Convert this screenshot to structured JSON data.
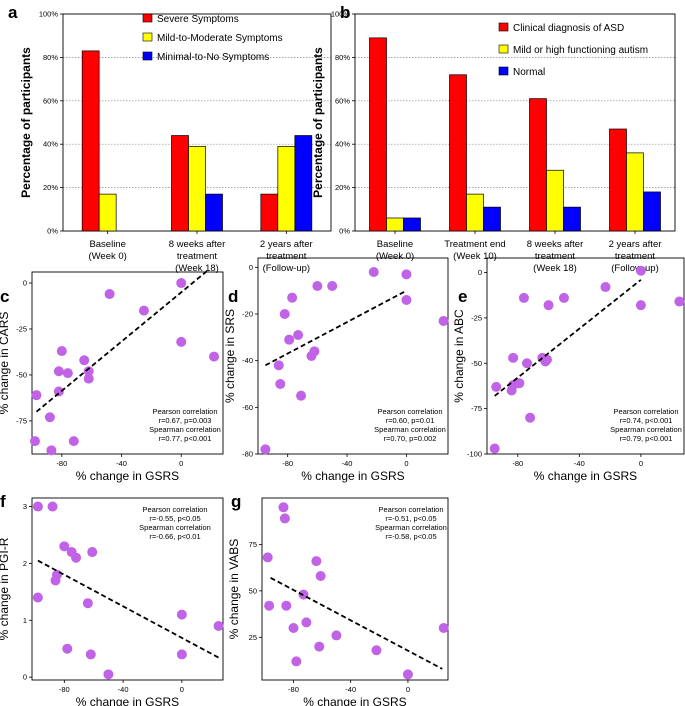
{
  "chart_data": [
    {
      "type": "bar",
      "panel": "a",
      "categories": [
        [
          "Baseline",
          "(Week 0)"
        ],
        [
          "8 weeks after",
          "treatment",
          "(Week 18)"
        ],
        [
          "2 years after",
          "treatment",
          "(Follow-up)"
        ]
      ],
      "ylabel": "Percentage of participants",
      "ylim": [
        0,
        100
      ],
      "yticks": [
        "0%",
        "20%",
        "40%",
        "60%",
        "80%",
        "100%"
      ],
      "grid": "horizontal-dotted",
      "legend_position": "top-right",
      "series": [
        {
          "name": "Severe Symptoms",
          "color": "#ff0000",
          "values": [
            83,
            44,
            17
          ]
        },
        {
          "name": "Mild-to-Moderate Symptoms",
          "color": "#ffff00",
          "values": [
            17,
            39,
            39
          ]
        },
        {
          "name": "Minimal-to-No Symptoms",
          "color": "#0000ff",
          "values": [
            0,
            17,
            44
          ]
        }
      ]
    },
    {
      "type": "bar",
      "panel": "b",
      "categories": [
        [
          "Baseline",
          "(Week 0)"
        ],
        [
          "Treatment end",
          "(Week 10)"
        ],
        [
          "8 weeks after",
          "treatment",
          "(Week 18)"
        ],
        [
          "2 years after",
          "treatment",
          "(Follow-up)"
        ]
      ],
      "ylabel": "Percentage of participants",
      "ylim": [
        0,
        100
      ],
      "yticks": [
        "0%",
        "20%",
        "40%",
        "60%",
        "80%",
        "100%"
      ],
      "grid": "horizontal-dotted",
      "legend_position": "top-right",
      "series": [
        {
          "name": "Clinical diagnosis of ASD",
          "color": "#ff0000",
          "values": [
            89,
            72,
            61,
            47
          ]
        },
        {
          "name": "Mild or high functioning autism",
          "color": "#ffff00",
          "values": [
            6,
            17,
            28,
            36
          ]
        },
        {
          "name": "Normal",
          "color": "#0000ff",
          "values": [
            6,
            11,
            11,
            18
          ]
        }
      ]
    },
    {
      "type": "scatter",
      "panel": "c",
      "xlabel": "% change in GSRS",
      "ylabel": "% change in CARS",
      "xlim": [
        -100,
        28
      ],
      "ylim": [
        -93,
        6
      ],
      "xticks": [
        -80,
        -40,
        0
      ],
      "yticks": [
        0,
        -25,
        -50,
        -75
      ],
      "stats": [
        "Pearson correlation",
        "r=0.67, p=0.003",
        "Spearman correlation",
        "r=0.77, p<0.001"
      ],
      "trendline": [
        [
          -97,
          -70
        ],
        [
          18,
          7
        ]
      ],
      "x": [
        -97,
        -98,
        -88,
        -87,
        -82,
        -82,
        -80,
        -76,
        -72,
        -65,
        -62,
        -62,
        -48,
        -25,
        0,
        0,
        22
      ],
      "y": [
        -61,
        -86,
        -73,
        -91,
        -59,
        -48,
        -37,
        -49,
        -86,
        -42,
        -48,
        -52,
        -6,
        -15,
        0,
        -32,
        -40
      ]
    },
    {
      "type": "scatter",
      "panel": "d",
      "xlabel": "% change in GSRS",
      "ylabel": "% change in SRS",
      "xlim": [
        -100,
        28
      ],
      "ylim": [
        -80,
        4
      ],
      "xticks": [
        -80,
        -40,
        0
      ],
      "yticks": [
        0,
        -20,
        -40,
        -60,
        -80
      ],
      "stats": [
        "Pearson correlation",
        "r=0.60, p=0.01",
        "Spearman correlation",
        "r=0.70, p=0.002"
      ],
      "trendline": [
        [
          -95,
          -42
        ],
        [
          0,
          -10
        ]
      ],
      "x": [
        -95,
        -86,
        -85,
        -82,
        -79,
        -77,
        -73,
        -71,
        -64,
        -62,
        -60,
        -50,
        -22,
        0,
        0,
        25
      ],
      "y": [
        -78,
        -42,
        -50,
        -20,
        -31,
        -13,
        -29,
        -55,
        -38,
        -36,
        -8,
        -8,
        -2,
        -3,
        -14,
        -23
      ]
    },
    {
      "type": "scatter",
      "panel": "e",
      "xlabel": "% change in GSRS",
      "ylabel": "% change in ABC",
      "xlim": [
        -100,
        28
      ],
      "ylim": [
        -100,
        8
      ],
      "xticks": [
        -80,
        -40,
        0
      ],
      "yticks": [
        0,
        -25,
        -50,
        -75,
        -100
      ],
      "stats": [
        "Pearson correlation",
        "r=0.74, p<0.001",
        "Spearman correlation",
        "r=0.79, p<0.001"
      ],
      "trendline": [
        [
          -95,
          -68
        ],
        [
          0,
          -4
        ]
      ],
      "x": [
        -95,
        -94,
        -84,
        -83,
        -83,
        -79,
        -76,
        -74,
        -72,
        -64,
        -62,
        -61,
        -60,
        -50,
        -23,
        0,
        0,
        25
      ],
      "y": [
        -97,
        -63,
        -65,
        -62,
        -47,
        -61,
        -14,
        -50,
        -80,
        -47,
        -49,
        -48,
        -18,
        -14,
        -8,
        1,
        -18,
        -16
      ]
    },
    {
      "type": "scatter",
      "panel": "f",
      "xlabel": "% change in GSRS",
      "ylabel": "% change in PGI-R",
      "xlim": [
        -102,
        28
      ],
      "ylim": [
        -0.05,
        3.15
      ],
      "xticks": [
        -80,
        -40,
        0
      ],
      "yticks": [
        0,
        1,
        2,
        3
      ],
      "stats": [
        "Pearson correlation",
        "r=-0.55, p<0.05",
        "Spearman correlation",
        "r=-0.66, p<0.01"
      ],
      "trendline": [
        [
          -98,
          2.05
        ],
        [
          26,
          0.33
        ]
      ],
      "x": [
        -98,
        -98,
        -88,
        -86,
        -85,
        -80,
        -78,
        -75,
        -72,
        -64,
        -62,
        -61,
        -50,
        0,
        0,
        25
      ],
      "y": [
        3.0,
        1.4,
        3.0,
        1.7,
        1.8,
        2.3,
        0.5,
        2.2,
        2.1,
        1.3,
        0.4,
        2.2,
        0.05,
        1.1,
        0.4,
        0.9
      ]
    },
    {
      "type": "scatter",
      "panel": "g",
      "xlabel": "% change in GSRS",
      "ylabel": "% change in VABS",
      "xlim": [
        -102,
        28
      ],
      "ylim": [
        2,
        100
      ],
      "xticks": [
        -80,
        -40,
        0
      ],
      "yticks": [
        25,
        50,
        75
      ],
      "stats": [
        "Pearson correlation",
        "r=-0.51, p<0.05",
        "Spearman correlation",
        "r=-0.58, p<0.05"
      ],
      "trendline": [
        [
          -96,
          57
        ],
        [
          24,
          8
        ]
      ],
      "x": [
        -98,
        -97,
        -87,
        -86,
        -85,
        -80,
        -78,
        -73,
        -71,
        -64,
        -62,
        -61,
        -50,
        -22,
        0,
        25
      ],
      "y": [
        68,
        42,
        95,
        89,
        42,
        30,
        12,
        48,
        33,
        66,
        20,
        58,
        26,
        18,
        5,
        30
      ]
    }
  ],
  "panel_labels": [
    "a",
    "b",
    "c",
    "d",
    "e",
    "f",
    "g"
  ],
  "colors": {
    "scatter_point": "#c163e6",
    "trendline": "#000000",
    "grid": "#888888"
  }
}
